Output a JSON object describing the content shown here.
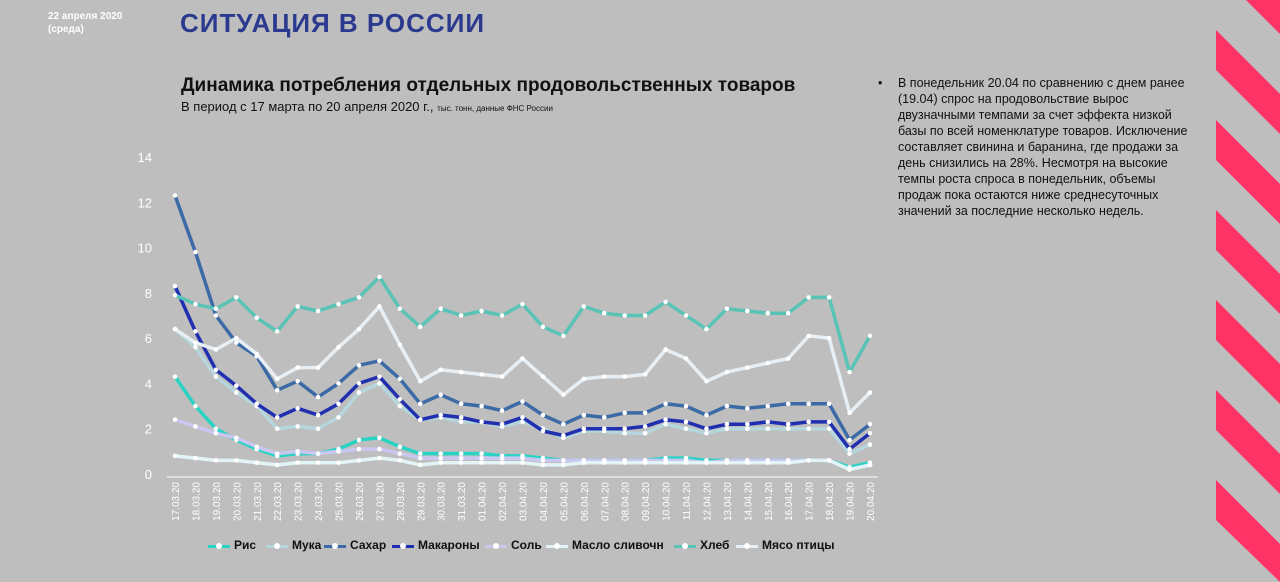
{
  "header": {
    "date": "22 апреля 2020",
    "weekday": "(среда)",
    "title": "СИТУАЦИЯ В РОССИИ"
  },
  "note": {
    "bullet": "•",
    "text": "В понедельник 20.04 по сравнению с днем ранее (19.04) спрос на продовольствие вырос двузначными темпами за счет эффекта низкой базы по всей номенклатуре товаров. Исключение составляет свинина и баранина, где продажи за день снизились на 28%. Несмотря на высокие темпы роста спроса в понедельник, объемы продаж пока остаются ниже среднесуточных значений за последние несколько недель."
  },
  "colors": {
    "background": "#bebebe",
    "title": "#2b3a8f",
    "stripe": "#ff3366"
  },
  "chart_data": {
    "type": "line",
    "title": "Динамика потребления отдельных продовольственных товаров",
    "subtitle_main": "В период с 17 марта по 20 апреля 2020 г.,",
    "subtitle_small": "тыс. тонн, данные ФНС России",
    "ylim": [
      0,
      14
    ],
    "yticks": [
      "0",
      "2",
      "4",
      "6",
      "8",
      "10",
      "12",
      "14"
    ],
    "grid": false,
    "legend_position": "bottom",
    "categories": [
      "17.03.20",
      "18.03.20",
      "19.03.20",
      "20.03.20",
      "21.03.20",
      "22.03.20",
      "23.03.20",
      "24.03.20",
      "25.03.20",
      "26.03.20",
      "27.03.20",
      "28.03.20",
      "29.03.20",
      "30.03.20",
      "31.03.20",
      "01.04.20",
      "02.04.20",
      "03.04.20",
      "04.04.20",
      "05.04.20",
      "06.04.20",
      "07.04.20",
      "08.04.20",
      "09.04.20",
      "10.04.20",
      "11.04.20",
      "12.04.20",
      "13.04.20",
      "14.04.20",
      "15.04.20",
      "16.04.20",
      "17.04.20",
      "18.04.20",
      "19.04.20",
      "20.04.20"
    ],
    "series": [
      {
        "name": "Рис",
        "color": "#29d3c4",
        "values": [
          4.3,
          3.0,
          2.0,
          1.5,
          1.1,
          0.8,
          0.9,
          0.9,
          1.1,
          1.5,
          1.6,
          1.2,
          0.9,
          0.9,
          0.9,
          0.9,
          0.8,
          0.8,
          0.7,
          0.6,
          0.6,
          0.6,
          0.6,
          0.6,
          0.7,
          0.7,
          0.6,
          0.6,
          0.6,
          0.6,
          0.6,
          0.6,
          0.6,
          0.3,
          0.5
        ]
      },
      {
        "name": "Мука",
        "color": "#b5d6dc",
        "values": [
          6.4,
          5.6,
          4.3,
          3.6,
          3.0,
          2.0,
          2.1,
          2.0,
          2.5,
          3.6,
          4.0,
          3.0,
          2.4,
          2.5,
          2.3,
          2.3,
          2.1,
          2.3,
          2.0,
          1.6,
          1.9,
          1.9,
          1.8,
          1.8,
          2.2,
          2.0,
          1.8,
          2.0,
          2.0,
          2.0,
          2.0,
          2.0,
          2.0,
          0.9,
          1.3
        ]
      },
      {
        "name": "Сахар",
        "color": "#3c6aa6",
        "values": [
          12.3,
          9.8,
          7.0,
          5.8,
          5.2,
          3.7,
          4.1,
          3.4,
          4.0,
          4.8,
          5.0,
          4.2,
          3.1,
          3.5,
          3.1,
          3.0,
          2.8,
          3.2,
          2.6,
          2.2,
          2.6,
          2.5,
          2.7,
          2.7,
          3.1,
          3.0,
          2.6,
          3.0,
          2.9,
          3.0,
          3.1,
          3.1,
          3.1,
          1.5,
          2.2
        ]
      },
      {
        "name": "Макароны",
        "color": "#1f2fb0",
        "values": [
          8.3,
          6.3,
          4.6,
          3.9,
          3.1,
          2.5,
          2.9,
          2.6,
          3.1,
          4.0,
          4.3,
          3.3,
          2.4,
          2.6,
          2.5,
          2.3,
          2.2,
          2.5,
          1.9,
          1.7,
          2.0,
          2.0,
          2.0,
          2.1,
          2.4,
          2.3,
          2.0,
          2.2,
          2.2,
          2.3,
          2.2,
          2.3,
          2.3,
          1.1,
          1.8
        ]
      },
      {
        "name": "Соль",
        "color": "#c9c7f0",
        "values": [
          2.4,
          2.1,
          1.8,
          1.6,
          1.2,
          0.9,
          1.0,
          0.9,
          1.0,
          1.1,
          1.1,
          0.9,
          0.7,
          0.7,
          0.7,
          0.7,
          0.7,
          0.7,
          0.6,
          0.6,
          0.6,
          0.6,
          0.6,
          0.6,
          0.6,
          0.6,
          0.5,
          0.6,
          0.6,
          0.6,
          0.6,
          0.6,
          0.6,
          0.2,
          0.4
        ]
      },
      {
        "name": "Масло сливочн",
        "color": "#e3f4f7",
        "values": [
          0.8,
          0.7,
          0.6,
          0.6,
          0.5,
          0.4,
          0.5,
          0.5,
          0.5,
          0.6,
          0.7,
          0.6,
          0.4,
          0.5,
          0.5,
          0.5,
          0.5,
          0.5,
          0.4,
          0.4,
          0.5,
          0.5,
          0.5,
          0.5,
          0.5,
          0.5,
          0.5,
          0.5,
          0.5,
          0.5,
          0.5,
          0.6,
          0.6,
          0.2,
          0.4
        ]
      },
      {
        "name": "Хлеб",
        "color": "#59c3b6",
        "values": [
          7.9,
          7.5,
          7.3,
          7.8,
          6.9,
          6.3,
          7.4,
          7.2,
          7.5,
          7.8,
          8.7,
          7.3,
          6.5,
          7.3,
          7.0,
          7.2,
          7.0,
          7.5,
          6.5,
          6.1,
          7.4,
          7.1,
          7.0,
          7.0,
          7.6,
          7.0,
          6.4,
          7.3,
          7.2,
          7.1,
          7.1,
          7.8,
          7.8,
          4.5,
          6.1
        ]
      },
      {
        "name": "Мясо птицы",
        "color": "#e8eff4",
        "values": [
          6.4,
          5.8,
          5.5,
          6.0,
          5.3,
          4.2,
          4.7,
          4.7,
          5.6,
          6.4,
          7.4,
          5.7,
          4.1,
          4.6,
          4.5,
          4.4,
          4.3,
          5.1,
          4.3,
          3.5,
          4.2,
          4.3,
          4.3,
          4.4,
          5.5,
          5.1,
          4.1,
          4.5,
          4.7,
          4.9,
          5.1,
          6.1,
          6.0,
          2.7,
          3.6
        ]
      }
    ]
  }
}
